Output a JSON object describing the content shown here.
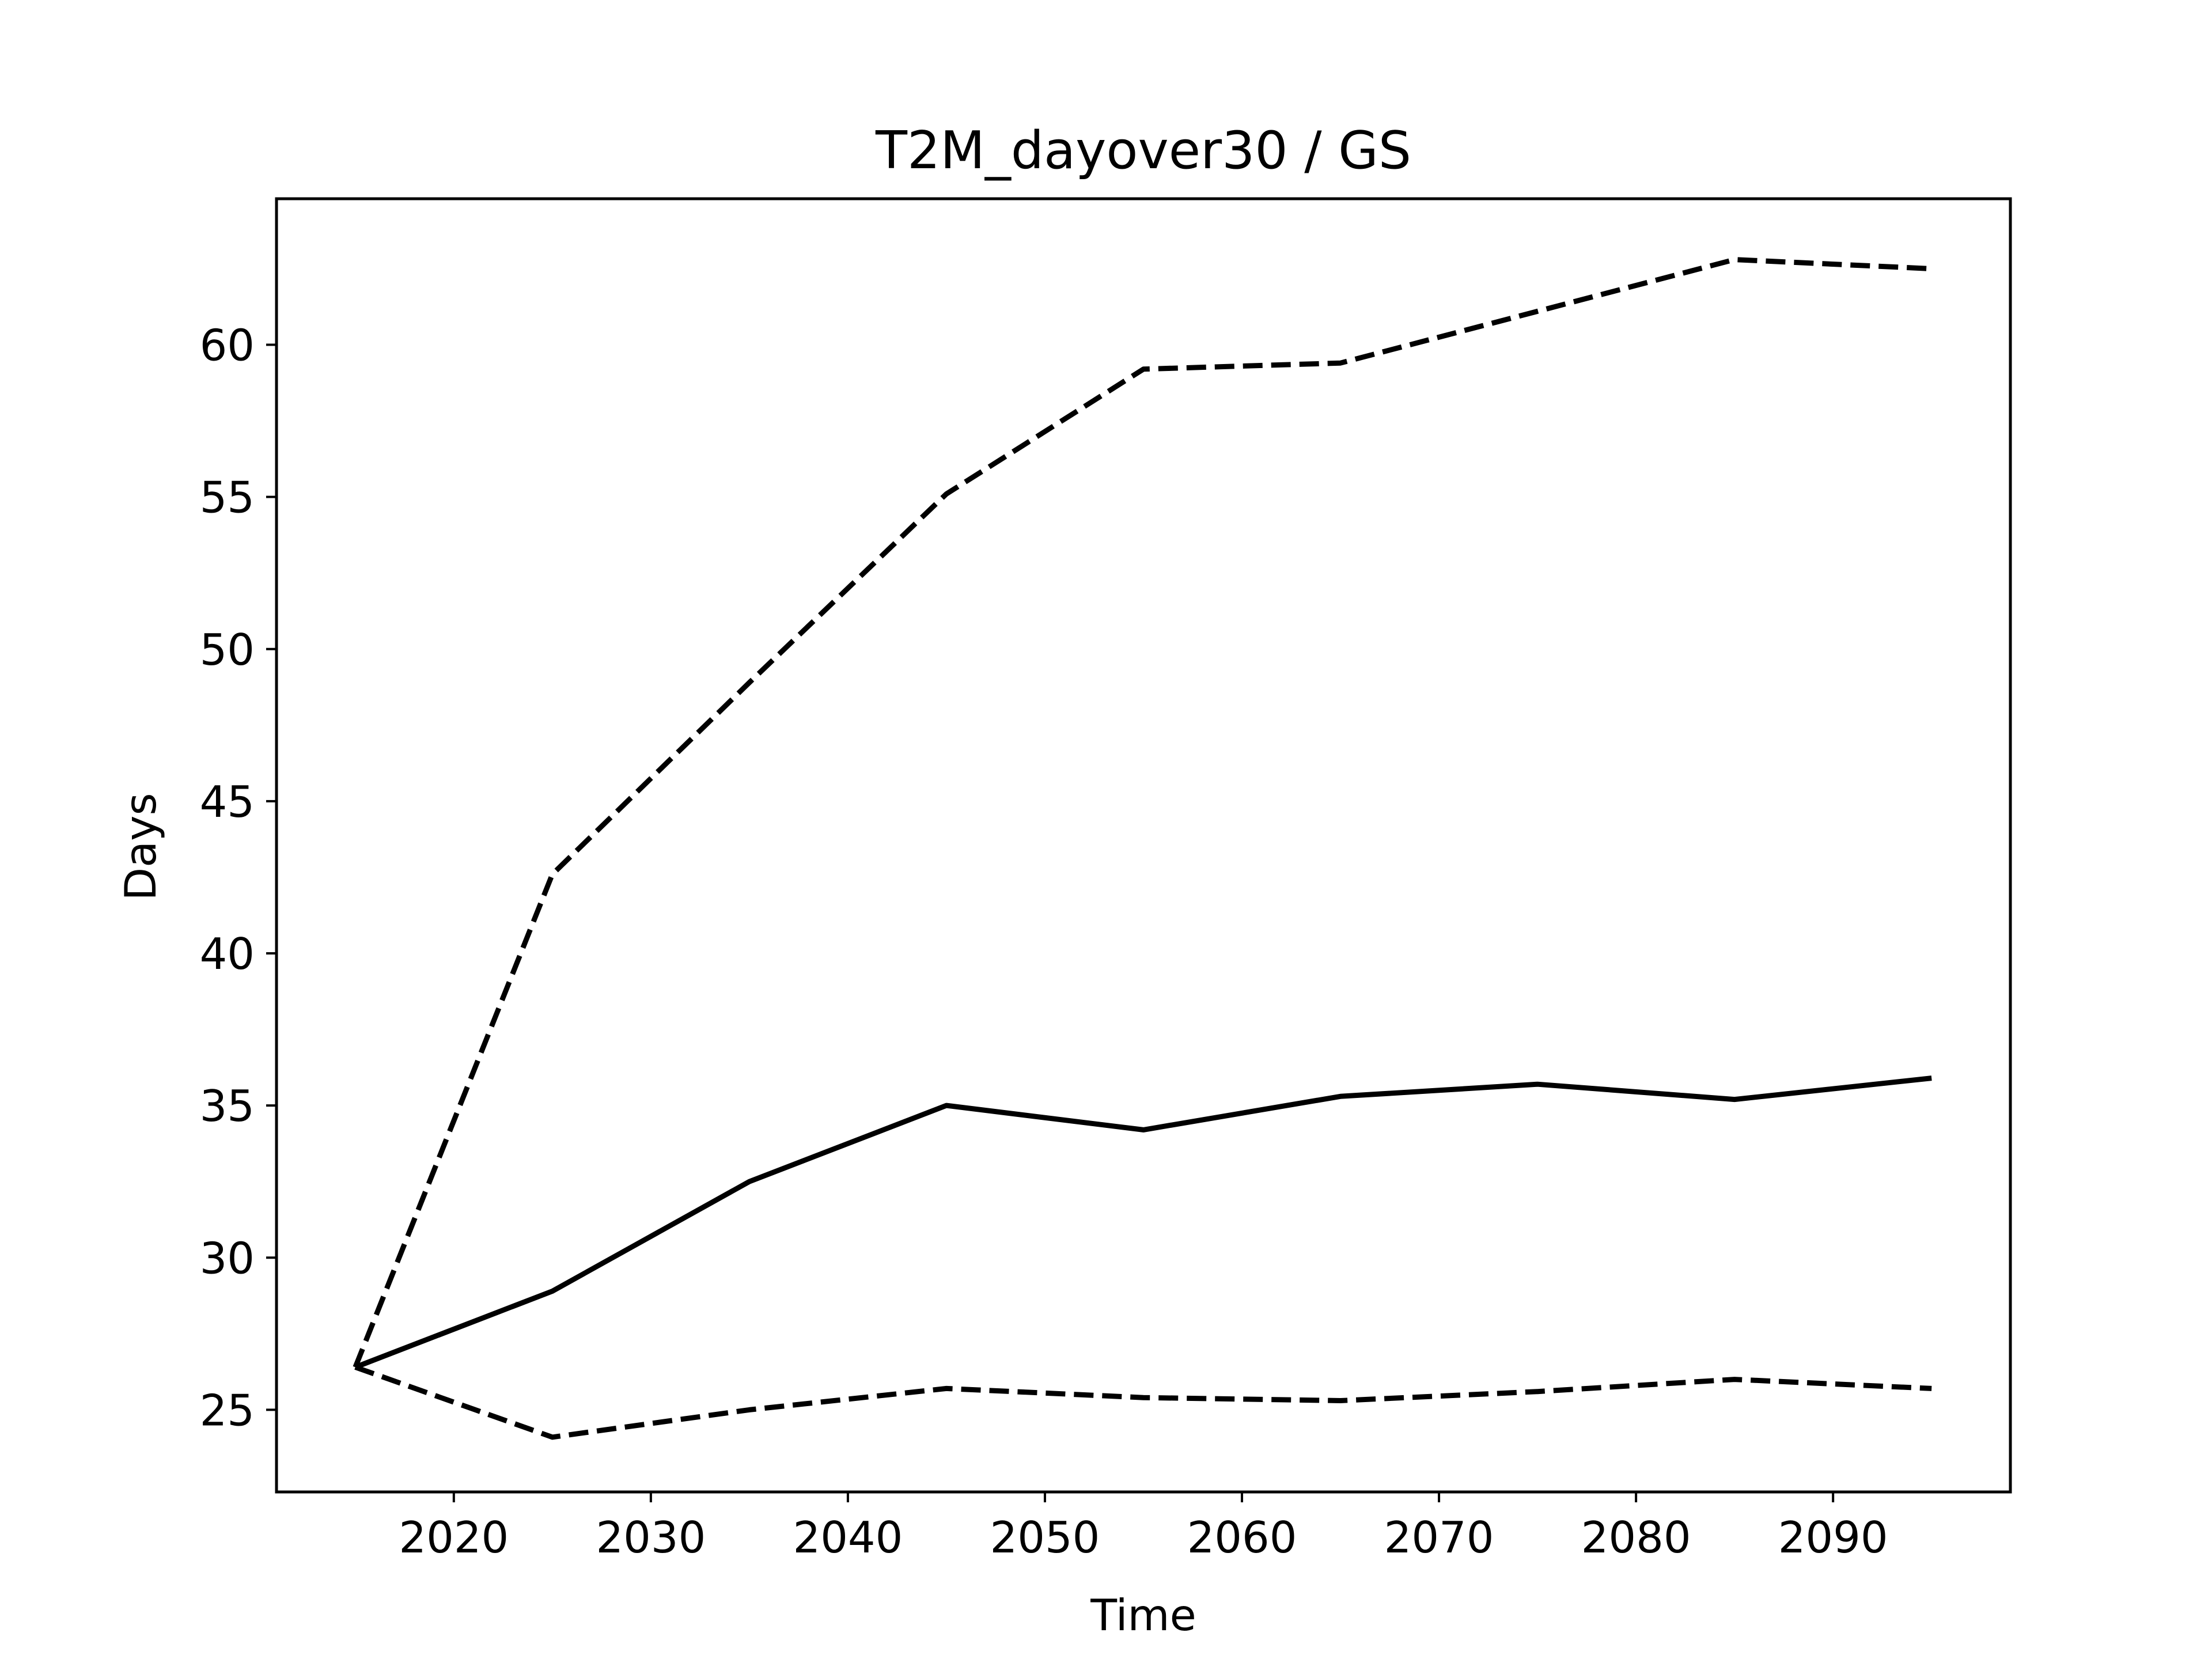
{
  "chart_data": {
    "type": "line",
    "title": "T2M_dayover30 / GS",
    "xlabel": "Time",
    "ylabel": "Days",
    "xlim": [
      2011,
      2099
    ],
    "ylim": [
      22.3,
      64.8
    ],
    "xticks": [
      2020,
      2030,
      2040,
      2050,
      2060,
      2070,
      2080,
      2090
    ],
    "yticks": [
      25,
      30,
      35,
      40,
      45,
      50,
      55,
      60
    ],
    "grid": false,
    "legend": "none",
    "x": [
      2015,
      2025,
      2035,
      2045,
      2055,
      2065,
      2075,
      2085,
      2095
    ],
    "series": [
      {
        "style": "dashed",
        "color": "#000000",
        "values": [
          26.4,
          42.6,
          48.9,
          55.1,
          59.2,
          59.4,
          61.1,
          62.8,
          62.5
        ]
      },
      {
        "style": "solid",
        "color": "#000000",
        "values": [
          26.4,
          28.9,
          32.5,
          35.0,
          34.2,
          35.3,
          35.7,
          35.2,
          35.9
        ]
      },
      {
        "style": "dashed",
        "color": "#000000",
        "values": [
          26.4,
          24.1,
          25.0,
          25.7,
          25.4,
          25.3,
          25.6,
          26.0,
          25.7
        ]
      }
    ]
  }
}
